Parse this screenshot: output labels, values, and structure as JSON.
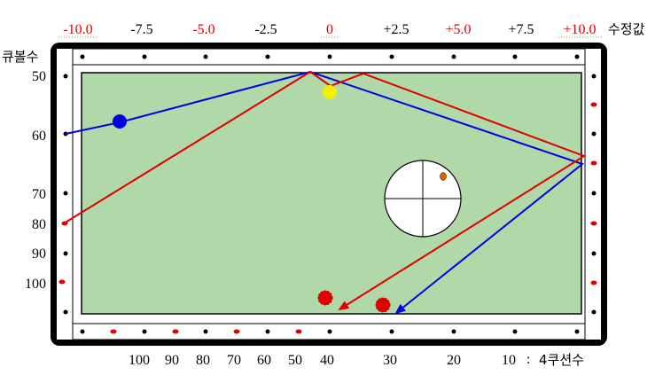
{
  "colors": {
    "felt": "#b0d8a8",
    "rail": "#ffffff",
    "frame": "#000000",
    "red": "#e00000",
    "blue": "#0000e0",
    "yellow": "#f0f000",
    "neutral_text": "#000000",
    "dot_underline": "#d08020"
  },
  "top_scale": {
    "labels": [
      {
        "text": "-10.0",
        "color": "red"
      },
      {
        "text": "-7.5",
        "color": "black"
      },
      {
        "text": "-5.0",
        "color": "red"
      },
      {
        "text": "-2.5",
        "color": "black"
      },
      {
        "text": "0",
        "color": "red"
      },
      {
        "text": "+2.5",
        "color": "black"
      },
      {
        "text": "+5.0",
        "color": "red"
      },
      {
        "text": "+7.5",
        "color": "black"
      },
      {
        "text": "+10.0",
        "color": "red"
      }
    ],
    "suffix": "수정값"
  },
  "left_scale": {
    "title": "큐볼수",
    "labels": [
      "50",
      "60",
      "70",
      "80",
      "90",
      "100"
    ]
  },
  "bottom_scale": {
    "labels": [
      "100",
      "90",
      "80",
      "70",
      "60",
      "50",
      "40",
      "30",
      "20"
    ],
    "suffix_number": "10",
    "suffix_separator": ":",
    "suffix_text": "4쿠션수"
  },
  "balls": [
    {
      "name": "blue-cue-ball",
      "color": "blue"
    },
    {
      "name": "yellow-ball",
      "color": "yellow"
    },
    {
      "name": "red-ball-1",
      "color": "red"
    },
    {
      "name": "red-ball-2",
      "color": "red"
    }
  ],
  "paths": [
    {
      "name": "blue-path",
      "color": "blue"
    },
    {
      "name": "red-path",
      "color": "red"
    }
  ],
  "aim_marker": {
    "icon": "ball-contact-crosshair-icon",
    "contact_dot_color": "#e06000"
  }
}
